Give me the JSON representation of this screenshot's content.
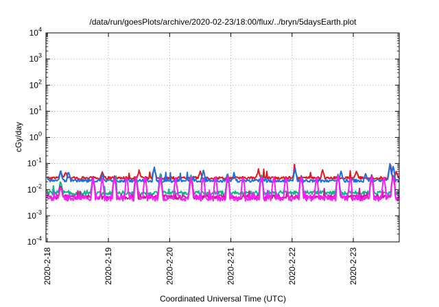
{
  "chart_data": {
    "type": "line",
    "title": "/data/run/goesPlots/archive/2020-02-23/18:00/flux/../bryn/5daysEarth.plot",
    "xlabel": "Coordinated Universal Time (UTC)",
    "ylabel": "cGy/day",
    "y_scale": "log",
    "ylim": [
      0.0001,
      10000
    ],
    "xlim": [
      -0.02,
      5.75
    ],
    "grid": true,
    "x_unit": "days since 2020-2-18 00:00 UTC",
    "x_ticks": [
      {
        "label": "2020-2-18",
        "x": 0
      },
      {
        "label": "2020-2-19",
        "x": 1
      },
      {
        "label": "2020-2-20",
        "x": 2
      },
      {
        "label": "2020-2-21",
        "x": 3
      },
      {
        "label": "2020-2-22",
        "x": 4
      },
      {
        "label": "2020-2-23",
        "x": 5
      }
    ],
    "y_ticks": [
      {
        "base": "10",
        "exp": "-4",
        "value": 0.0001
      },
      {
        "base": "10",
        "exp": "-3",
        "value": 0.001
      },
      {
        "base": "10",
        "exp": "-2",
        "value": 0.01
      },
      {
        "base": "10",
        "exp": "-1",
        "value": 0.1
      },
      {
        "base": "10",
        "exp": "0",
        "value": 1
      },
      {
        "base": "10",
        "exp": "1",
        "value": 10
      },
      {
        "base": "10",
        "exp": "2",
        "value": 100
      },
      {
        "base": "10",
        "exp": "3",
        "value": 1000
      },
      {
        "base": "10",
        "exp": "4",
        "value": 10000
      }
    ],
    "series": [
      {
        "color": "#e8161b",
        "base": 0.028,
        "jitter": 0.05,
        "spikes": [
          [
            0.22,
            0.048
          ],
          [
            0.3,
            0.05
          ],
          [
            0.9,
            0.044
          ],
          [
            1.5,
            0.05
          ],
          [
            1.75,
            0.07
          ],
          [
            2.5,
            0.05
          ],
          [
            3.45,
            0.055
          ],
          [
            4.05,
            0.06
          ],
          [
            4.5,
            0.052
          ],
          [
            5.05,
            0.055
          ],
          [
            5.6,
            0.1
          ],
          [
            5.7,
            0.045
          ]
        ]
      },
      {
        "color": "#1a6fe8",
        "base": 0.022,
        "jitter": 0.06,
        "spikes": [
          [
            0.06,
            0.018
          ],
          [
            0.22,
            0.05
          ],
          [
            0.35,
            0.048
          ],
          [
            0.9,
            0.035
          ],
          [
            1.75,
            0.065
          ],
          [
            2.55,
            0.055
          ],
          [
            3.05,
            0.04
          ],
          [
            4.05,
            0.065
          ],
          [
            4.8,
            0.045
          ],
          [
            5.2,
            0.045
          ],
          [
            5.6,
            0.09
          ],
          [
            5.65,
            0.08
          ]
        ]
      },
      {
        "color": "#12b48c",
        "base": 0.0075,
        "jitter": 0.08,
        "spikes": [
          [
            0.22,
            0.02
          ],
          [
            0.75,
            0.03
          ],
          [
            1.1,
            0.035
          ],
          [
            1.45,
            0.035
          ],
          [
            1.85,
            0.038
          ],
          [
            2.35,
            0.038
          ],
          [
            2.95,
            0.04
          ],
          [
            3.5,
            0.04
          ],
          [
            4.15,
            0.04
          ],
          [
            4.75,
            0.04
          ],
          [
            5.3,
            0.04
          ],
          [
            5.65,
            0.04
          ]
        ]
      },
      {
        "color": "#c81e92",
        "base": 0.0052,
        "jitter": 0.09,
        "spikes": [
          [
            0.22,
            0.015
          ],
          [
            0.75,
            0.028
          ],
          [
            1.1,
            0.03
          ],
          [
            1.45,
            0.03
          ],
          [
            1.85,
            0.032
          ],
          [
            2.35,
            0.033
          ],
          [
            2.95,
            0.035
          ],
          [
            3.5,
            0.035
          ],
          [
            4.15,
            0.035
          ],
          [
            4.75,
            0.035
          ],
          [
            5.3,
            0.035
          ],
          [
            5.65,
            0.035
          ]
        ]
      },
      {
        "color": "#ff1aff",
        "base": 0.0048,
        "jitter": 0.12,
        "spikes": [
          [
            0.22,
            0.013
          ],
          [
            0.75,
            0.025
          ],
          [
            0.9,
            0.028
          ],
          [
            1.1,
            0.03
          ],
          [
            1.3,
            0.025
          ],
          [
            1.45,
            0.028
          ],
          [
            1.6,
            0.03
          ],
          [
            1.85,
            0.03
          ],
          [
            2.1,
            0.028
          ],
          [
            2.35,
            0.03
          ],
          [
            2.55,
            0.032
          ],
          [
            2.75,
            0.03
          ],
          [
            2.95,
            0.033
          ],
          [
            3.2,
            0.03
          ],
          [
            3.5,
            0.033
          ],
          [
            3.7,
            0.03
          ],
          [
            3.9,
            0.03
          ],
          [
            4.15,
            0.033
          ],
          [
            4.4,
            0.03
          ],
          [
            4.75,
            0.033
          ],
          [
            4.95,
            0.03
          ],
          [
            5.3,
            0.033
          ],
          [
            5.5,
            0.03
          ],
          [
            5.65,
            0.033
          ]
        ]
      }
    ]
  }
}
